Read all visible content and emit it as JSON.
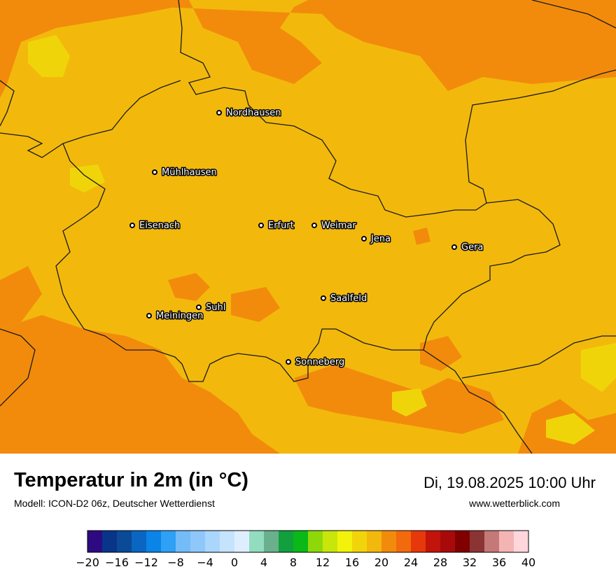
{
  "map": {
    "colors": {
      "base": "#f2b90c",
      "orange": "#f28b0c",
      "yellow": "#f0d40a",
      "border": "#1a1a1a"
    },
    "cities": [
      {
        "name": "Nordhausen"
      },
      {
        "name": "Mühlhausen"
      },
      {
        "name": "Eisenach"
      },
      {
        "name": "Erfurt"
      },
      {
        "name": "Weimar"
      },
      {
        "name": "Jena"
      },
      {
        "name": "Gera"
      },
      {
        "name": "Suhl"
      },
      {
        "name": "Meiningen"
      },
      {
        "name": "Saalfeld"
      },
      {
        "name": "Sonneberg"
      }
    ]
  },
  "header": {
    "title": "Temperatur in 2m (in °C)",
    "model": "Modell: ICON-D2 06z, Deutscher Wetterdienst",
    "datetime": "Di, 19.08.2025 10:00 Uhr",
    "website": "www.wetterblick.com"
  },
  "legend": {
    "min": -20,
    "max": 40,
    "step": 2,
    "ticks": [
      "−20",
      "−16",
      "−12",
      "−8",
      "−4",
      "0",
      "4",
      "8",
      "12",
      "16",
      "20",
      "24",
      "28",
      "32",
      "36",
      "40"
    ],
    "colors": [
      "#2e0a82",
      "#08358a",
      "#0a4a96",
      "#0a66c2",
      "#0a84e6",
      "#2ea0f5",
      "#74bcf8",
      "#8ec8fb",
      "#aad6fc",
      "#c6e3fd",
      "#dfeefe",
      "#92dcc0",
      "#6ab08c",
      "#12a03e",
      "#0ab818",
      "#8ed80a",
      "#c8e60a",
      "#f2f20a",
      "#f2d40a",
      "#f2b90c",
      "#f28b0c",
      "#f26a0c",
      "#e6380a",
      "#c2140a",
      "#a80a0a",
      "#800000",
      "#8b3434",
      "#c47878",
      "#f4b4b4",
      "#ffd6dc"
    ]
  }
}
